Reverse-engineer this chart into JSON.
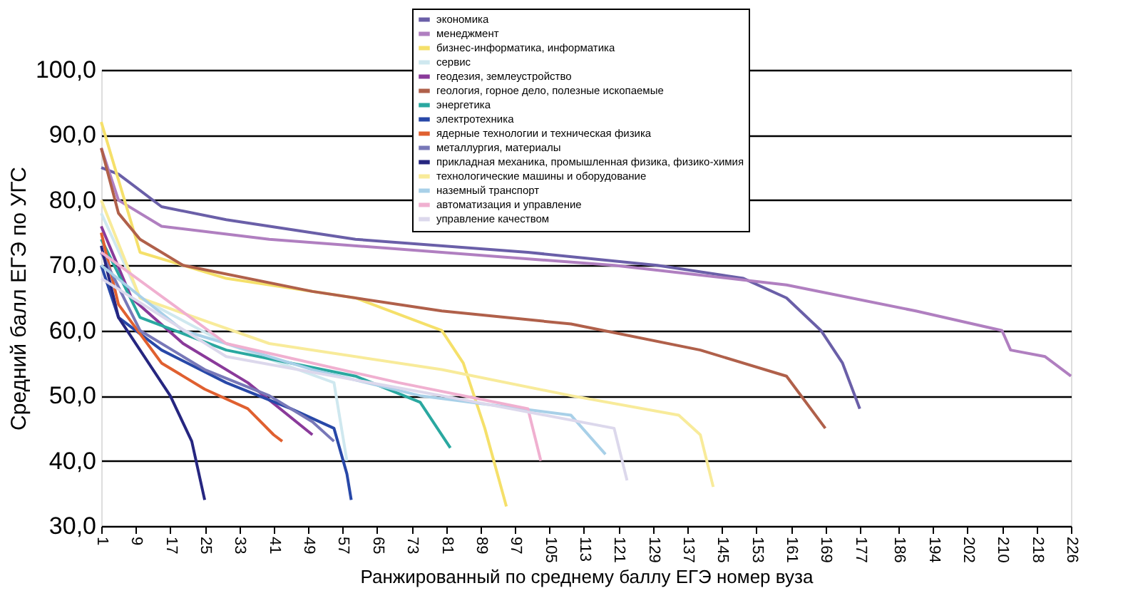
{
  "chart_data": {
    "type": "line",
    "xlabel": "Ранжированный по среднему баллу ЕГЭ номер вуза",
    "ylabel": "Средний балл ЕГЭ по УГС",
    "xlim": [
      1,
      226
    ],
    "xticks": [
      1,
      9,
      17,
      25,
      33,
      41,
      49,
      57,
      65,
      73,
      81,
      89,
      97,
      105,
      113,
      121,
      129,
      137,
      145,
      153,
      161,
      169,
      177,
      186,
      194,
      202,
      210,
      218,
      226
    ],
    "ylim": [
      30,
      100
    ],
    "yticks": [
      {
        "value": 30,
        "label": "30,0"
      },
      {
        "value": 40,
        "label": "40,0"
      },
      {
        "value": 50,
        "label": "50,0"
      },
      {
        "value": 60,
        "label": "60,0"
      },
      {
        "value": 70,
        "label": "70,0"
      },
      {
        "value": 80,
        "label": "80,0"
      },
      {
        "value": 90,
        "label": "90,0"
      },
      {
        "value": 100,
        "label": "100,0"
      }
    ],
    "grid": "y",
    "legend": "top right",
    "marker": "none",
    "line_style": "solid",
    "series": [
      {
        "name": "экономика",
        "color": "#6a5fa8",
        "x": [
          1,
          5,
          15,
          30,
          60,
          100,
          130,
          150,
          160,
          168,
          173,
          177
        ],
        "values": [
          85,
          84,
          79,
          77,
          74,
          72,
          70,
          68,
          65,
          60,
          55,
          48
        ]
      },
      {
        "name": "менеджмент",
        "color": "#b07fc0",
        "x": [
          1,
          5,
          15,
          40,
          80,
          120,
          160,
          190,
          210,
          212,
          220,
          226
        ],
        "values": [
          88,
          80,
          76,
          74,
          72,
          70,
          67,
          63,
          60,
          57,
          56,
          53
        ]
      },
      {
        "name": "бизнес-информатика, информатика",
        "color": "#f5e06a",
        "x": [
          1,
          10,
          30,
          60,
          80,
          85,
          90,
          95
        ],
        "values": [
          92,
          72,
          68,
          65,
          60,
          55,
          45,
          33
        ]
      },
      {
        "name": "сервис",
        "color": "#cfe8ef",
        "x": [
          1,
          10,
          30,
          55,
          58
        ],
        "values": [
          78,
          65,
          58,
          52,
          40
        ]
      },
      {
        "name": "геодезия, землеустройство",
        "color": "#8a3a9a",
        "x": [
          1,
          8,
          20,
          35,
          50
        ],
        "values": [
          76,
          65,
          58,
          52,
          44
        ]
      },
      {
        "name": "геология, горное дело, полезные ископаемые",
        "color": "#b0604a",
        "x": [
          1,
          5,
          10,
          20,
          50,
          80,
          110,
          140,
          160,
          169
        ],
        "values": [
          88,
          78,
          74,
          70,
          66,
          63,
          61,
          57,
          53,
          45
        ]
      },
      {
        "name": "энергетика",
        "color": "#2aa8a0",
        "x": [
          1,
          10,
          30,
          60,
          75,
          82
        ],
        "values": [
          74,
          62,
          57,
          53,
          49,
          42
        ]
      },
      {
        "name": "электротехника",
        "color": "#2848a8",
        "x": [
          1,
          5,
          15,
          30,
          45,
          55,
          58,
          59
        ],
        "values": [
          70,
          62,
          57,
          52,
          48,
          45,
          38,
          34
        ]
      },
      {
        "name": "ядерные технологии и техническая физика",
        "color": "#e06030",
        "x": [
          1,
          5,
          15,
          25,
          35,
          41,
          43
        ],
        "values": [
          75,
          64,
          55,
          51,
          48,
          44,
          43
        ]
      },
      {
        "name": "металлургия, материалы",
        "color": "#7878b8",
        "x": [
          1,
          10,
          25,
          40,
          50,
          55
        ],
        "values": [
          72,
          60,
          54,
          50,
          46,
          43
        ]
      },
      {
        "name": "прикладная механика, промышленная физика, физико-химия",
        "color": "#262680",
        "x": [
          1,
          5,
          10,
          17,
          22,
          25
        ],
        "values": [
          73,
          62,
          57,
          50,
          43,
          34
        ]
      },
      {
        "name": "технологические машины и оборудование",
        "color": "#f8eb9a",
        "x": [
          1,
          10,
          40,
          80,
          110,
          135,
          140,
          143
        ],
        "values": [
          80,
          65,
          58,
          54,
          50,
          47,
          44,
          36
        ]
      },
      {
        "name": "наземный транспорт",
        "color": "#a8d0e8",
        "x": [
          1,
          20,
          50,
          75,
          110,
          118
        ],
        "values": [
          70,
          60,
          54,
          50,
          47,
          41
        ]
      },
      {
        "name": "автоматизация и управление",
        "color": "#f0b0d0",
        "x": [
          1,
          30,
          70,
          100,
          103
        ],
        "values": [
          72,
          58,
          52,
          48,
          40
        ]
      },
      {
        "name": "управление качеством",
        "color": "#dcd8ec",
        "x": [
          1,
          30,
          80,
          120,
          123
        ],
        "values": [
          68,
          56,
          50,
          45,
          37
        ]
      }
    ]
  }
}
